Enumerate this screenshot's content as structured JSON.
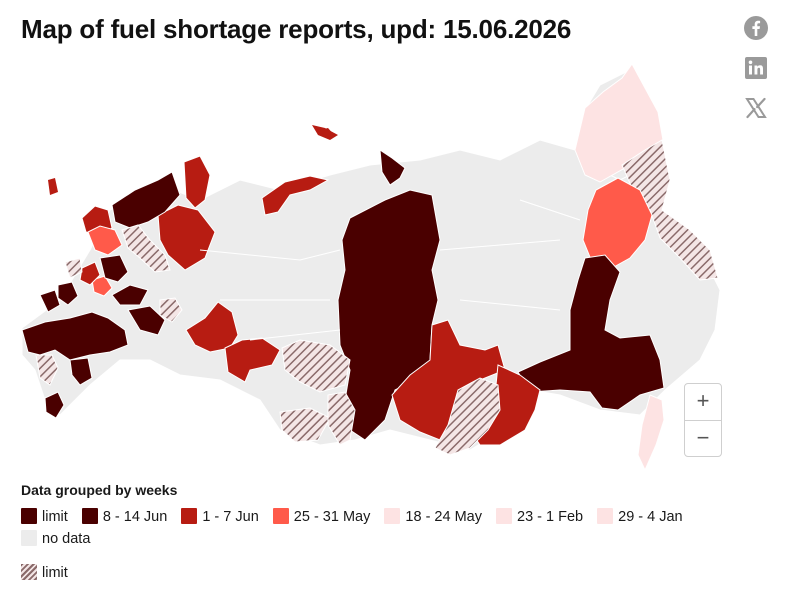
{
  "header": {
    "title": "Map of fuel shortage reports, upd: 15.06.2026"
  },
  "social": [
    {
      "name": "facebook-icon"
    },
    {
      "name": "linkedin-icon"
    },
    {
      "name": "x-icon"
    }
  ],
  "zoom": {
    "in_label": "+",
    "out_label": "−"
  },
  "legend": {
    "title": "Data grouped by weeks",
    "items": [
      {
        "label": "limit",
        "color": "#4a0000"
      },
      {
        "label": "8 - 14 Jun",
        "color": "#4a0000"
      },
      {
        "label": "1 - 7 Jun",
        "color": "#b71c12"
      },
      {
        "label": "25 - 31 May",
        "color": "#ff5a4a"
      },
      {
        "label": "18 - 24 May",
        "color": "#fde3e3"
      },
      {
        "label": "23 - 1 Feb",
        "color": "#fde3e3"
      },
      {
        "label": "29 - 4 Jan",
        "color": "#fde3e3"
      },
      {
        "label": "no data",
        "color": "#ececec"
      }
    ],
    "hatch_label": "limit"
  },
  "colors": {
    "dark": "#4a0000",
    "red": "#b71c12",
    "coral": "#ff5a4a",
    "pink": "#fde3e3",
    "nodata": "#ececec",
    "hatch": "#8a6a6a"
  }
}
